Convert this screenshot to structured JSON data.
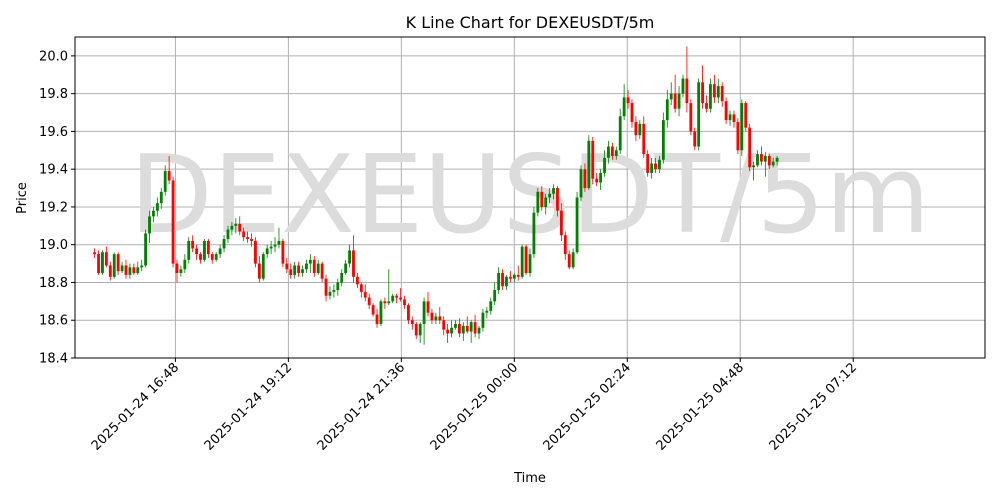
{
  "chart_data": {
    "type": "candlestick",
    "title": "K Line Chart for DEXEUSDT/5m",
    "xlabel": "Time",
    "ylabel": "Price",
    "watermark": "DEXEUSDT/5m",
    "ylim": [
      18.4,
      20.1
    ],
    "xlim": [
      "2025-01-24 14:40",
      "2025-01-25 10:00"
    ],
    "yticks": [
      18.4,
      18.6,
      18.8,
      19.0,
      19.2,
      19.4,
      19.6,
      19.8,
      20.0
    ],
    "ytick_labels": [
      "18.4",
      "18.6",
      "18.8",
      "19.0",
      "19.2",
      "19.4",
      "19.6",
      "19.8",
      "20.0"
    ],
    "xticks": [
      "2025-01-24 16:48",
      "2025-01-24 19:12",
      "2025-01-24 21:36",
      "2025-01-25 00:00",
      "2025-01-25 02:24",
      "2025-01-25 04:48",
      "2025-01-25 07:12"
    ],
    "grid": true,
    "legend": "none",
    "colors": {
      "up": "#008000",
      "down": "#ff0000",
      "grid": "#b0b0b0",
      "watermark": "#dcdcdc"
    },
    "candle_interval_minutes": 5,
    "first_candle_time": "2025-01-24 15:05",
    "candles": [
      [
        18.96,
        18.98,
        18.93,
        18.95
      ],
      [
        18.95,
        18.97,
        18.84,
        18.85
      ],
      [
        18.85,
        18.97,
        18.84,
        18.96
      ],
      [
        18.96,
        18.99,
        18.88,
        18.89
      ],
      [
        18.89,
        18.91,
        18.81,
        18.83
      ],
      [
        18.83,
        18.96,
        18.82,
        18.95
      ],
      [
        18.95,
        18.96,
        18.84,
        18.86
      ],
      [
        18.86,
        18.91,
        18.85,
        18.89
      ],
      [
        18.89,
        18.92,
        18.82,
        18.84
      ],
      [
        18.84,
        18.9,
        18.82,
        18.88
      ],
      [
        18.88,
        18.9,
        18.84,
        18.85
      ],
      [
        18.85,
        18.91,
        18.84,
        18.88
      ],
      [
        18.88,
        18.92,
        18.86,
        18.89
      ],
      [
        18.89,
        19.08,
        18.88,
        19.06
      ],
      [
        19.06,
        19.18,
        19.01,
        19.15
      ],
      [
        19.15,
        19.2,
        19.12,
        19.18
      ],
      [
        19.18,
        19.25,
        19.15,
        19.22
      ],
      [
        19.22,
        19.3,
        19.19,
        19.28
      ],
      [
        19.28,
        19.42,
        19.26,
        19.39
      ],
      [
        19.39,
        19.47,
        19.32,
        19.34
      ],
      [
        19.34,
        19.36,
        18.88,
        18.9
      ],
      [
        18.9,
        18.92,
        18.8,
        18.85
      ],
      [
        18.85,
        18.89,
        18.83,
        18.87
      ],
      [
        18.87,
        18.95,
        18.85,
        18.92
      ],
      [
        18.92,
        19.04,
        18.9,
        19.02
      ],
      [
        19.02,
        19.05,
        18.96,
        18.98
      ],
      [
        18.98,
        19.0,
        18.92,
        18.95
      ],
      [
        18.95,
        18.96,
        18.9,
        18.92
      ],
      [
        18.92,
        19.03,
        18.91,
        19.02
      ],
      [
        19.02,
        19.03,
        18.93,
        18.95
      ],
      [
        18.95,
        18.96,
        18.9,
        18.92
      ],
      [
        18.92,
        18.96,
        18.91,
        18.95
      ],
      [
        18.95,
        19.0,
        18.93,
        18.98
      ],
      [
        18.98,
        19.05,
        18.96,
        19.03
      ],
      [
        19.03,
        19.1,
        19.01,
        19.08
      ],
      [
        19.08,
        19.12,
        19.05,
        19.1
      ],
      [
        19.1,
        19.14,
        19.06,
        19.11
      ],
      [
        19.11,
        19.15,
        19.05,
        19.07
      ],
      [
        19.07,
        19.09,
        19.02,
        19.04
      ],
      [
        19.04,
        19.07,
        19.01,
        19.03
      ],
      [
        19.03,
        19.06,
        18.99,
        19.02
      ],
      [
        19.02,
        19.04,
        18.88,
        18.9
      ],
      [
        18.9,
        18.94,
        18.8,
        18.82
      ],
      [
        18.82,
        18.96,
        18.81,
        18.95
      ],
      [
        18.95,
        19.0,
        18.93,
        18.98
      ],
      [
        18.98,
        19.02,
        18.95,
        18.99
      ],
      [
        18.99,
        19.04,
        18.96,
        19.0
      ],
      [
        19.0,
        19.09,
        18.98,
        19.02
      ],
      [
        19.02,
        19.03,
        18.88,
        18.9
      ],
      [
        18.9,
        18.93,
        18.85,
        18.87
      ],
      [
        18.87,
        18.9,
        18.82,
        18.84
      ],
      [
        18.84,
        18.91,
        18.82,
        18.89
      ],
      [
        18.89,
        18.91,
        18.83,
        18.85
      ],
      [
        18.85,
        18.89,
        18.83,
        18.87
      ],
      [
        18.87,
        18.92,
        18.85,
        18.9
      ],
      [
        18.9,
        18.95,
        18.85,
        18.92
      ],
      [
        18.92,
        18.94,
        18.83,
        18.85
      ],
      [
        18.85,
        18.92,
        18.84,
        18.9
      ],
      [
        18.9,
        18.91,
        18.8,
        18.82
      ],
      [
        18.82,
        18.84,
        18.7,
        18.73
      ],
      [
        18.73,
        18.78,
        18.71,
        18.75
      ],
      [
        18.75,
        18.79,
        18.72,
        18.76
      ],
      [
        18.76,
        18.82,
        18.73,
        18.8
      ],
      [
        18.8,
        18.87,
        18.78,
        18.85
      ],
      [
        18.85,
        18.92,
        18.84,
        18.9
      ],
      [
        18.9,
        19.0,
        18.88,
        18.97
      ],
      [
        18.97,
        19.05,
        18.8,
        18.83
      ],
      [
        18.83,
        18.85,
        18.77,
        18.79
      ],
      [
        18.79,
        18.8,
        18.72,
        18.75
      ],
      [
        18.75,
        18.79,
        18.7,
        18.72
      ],
      [
        18.72,
        18.74,
        18.66,
        18.68
      ],
      [
        18.68,
        18.69,
        18.62,
        18.63
      ],
      [
        18.63,
        18.66,
        18.56,
        18.58
      ],
      [
        18.58,
        18.71,
        18.57,
        18.7
      ],
      [
        18.7,
        18.72,
        18.66,
        18.69
      ],
      [
        18.69,
        18.87,
        18.68,
        18.7
      ],
      [
        18.7,
        18.74,
        18.69,
        18.73
      ],
      [
        18.73,
        18.74,
        18.69,
        18.72
      ],
      [
        18.72,
        18.77,
        18.7,
        18.71
      ],
      [
        18.71,
        18.73,
        18.66,
        18.68
      ],
      [
        18.68,
        18.69,
        18.58,
        18.6
      ],
      [
        18.6,
        18.62,
        18.55,
        18.58
      ],
      [
        18.58,
        18.59,
        18.5,
        18.52
      ],
      [
        18.52,
        18.59,
        18.48,
        18.58
      ],
      [
        18.58,
        18.72,
        18.47,
        18.7
      ],
      [
        18.7,
        18.75,
        18.62,
        18.64
      ],
      [
        18.64,
        18.66,
        18.58,
        18.6
      ],
      [
        18.6,
        18.64,
        18.58,
        18.62
      ],
      [
        18.62,
        18.67,
        18.58,
        18.6
      ],
      [
        18.6,
        18.62,
        18.52,
        18.55
      ],
      [
        18.55,
        18.58,
        18.48,
        18.53
      ],
      [
        18.53,
        18.6,
        18.51,
        18.56
      ],
      [
        18.56,
        18.6,
        18.55,
        18.58
      ],
      [
        18.58,
        18.61,
        18.51,
        18.53
      ],
      [
        18.53,
        18.59,
        18.49,
        18.57
      ],
      [
        18.57,
        18.62,
        18.53,
        18.54
      ],
      [
        18.54,
        18.6,
        18.48,
        18.59
      ],
      [
        18.59,
        18.63,
        18.51,
        18.53
      ],
      [
        18.53,
        18.57,
        18.5,
        18.56
      ],
      [
        18.56,
        18.66,
        18.54,
        18.64
      ],
      [
        18.64,
        18.67,
        18.61,
        18.65
      ],
      [
        18.65,
        18.72,
        18.63,
        18.7
      ],
      [
        18.7,
        18.8,
        18.68,
        18.76
      ],
      [
        18.76,
        18.88,
        18.74,
        18.85
      ],
      [
        18.85,
        18.87,
        18.76,
        18.78
      ],
      [
        18.78,
        18.84,
        18.76,
        18.83
      ],
      [
        18.83,
        18.86,
        18.8,
        18.82
      ],
      [
        18.82,
        18.85,
        18.8,
        18.84
      ],
      [
        18.84,
        18.89,
        18.81,
        18.83
      ],
      [
        18.83,
        19.0,
        18.82,
        18.99
      ],
      [
        18.99,
        19.0,
        18.84,
        18.85
      ],
      [
        18.85,
        18.98,
        18.83,
        18.95
      ],
      [
        18.95,
        19.2,
        18.93,
        19.17
      ],
      [
        19.17,
        19.3,
        19.15,
        19.28
      ],
      [
        19.28,
        19.31,
        19.18,
        19.2
      ],
      [
        19.2,
        19.27,
        19.16,
        19.25
      ],
      [
        19.25,
        19.3,
        19.22,
        19.27
      ],
      [
        19.27,
        19.32,
        19.24,
        19.3
      ],
      [
        19.3,
        19.31,
        19.15,
        19.18
      ],
      [
        19.18,
        19.22,
        19.02,
        19.05
      ],
      [
        19.05,
        19.07,
        18.92,
        18.95
      ],
      [
        18.95,
        18.97,
        18.87,
        18.88
      ],
      [
        18.88,
        18.98,
        18.87,
        18.96
      ],
      [
        18.96,
        19.28,
        18.95,
        19.25
      ],
      [
        19.25,
        19.42,
        19.23,
        19.4
      ],
      [
        19.4,
        19.43,
        19.28,
        19.3
      ],
      [
        19.3,
        19.58,
        19.29,
        19.55
      ],
      [
        19.55,
        19.57,
        19.32,
        19.35
      ],
      [
        19.35,
        19.38,
        19.31,
        19.33
      ],
      [
        19.33,
        19.4,
        19.29,
        19.38
      ],
      [
        19.38,
        19.5,
        19.36,
        19.46
      ],
      [
        19.46,
        19.55,
        19.43,
        19.52
      ],
      [
        19.52,
        19.54,
        19.45,
        19.47
      ],
      [
        19.47,
        19.52,
        19.45,
        19.5
      ],
      [
        19.5,
        19.72,
        19.48,
        19.68
      ],
      [
        19.68,
        19.85,
        19.66,
        19.78
      ],
      [
        19.78,
        19.82,
        19.72,
        19.75
      ],
      [
        19.75,
        19.77,
        19.62,
        19.65
      ],
      [
        19.65,
        19.68,
        19.55,
        19.58
      ],
      [
        19.58,
        19.66,
        19.56,
        19.64
      ],
      [
        19.64,
        19.68,
        19.46,
        19.48
      ],
      [
        19.48,
        19.5,
        19.36,
        19.38
      ],
      [
        19.38,
        19.46,
        19.35,
        19.43
      ],
      [
        19.43,
        19.46,
        19.38,
        19.4
      ],
      [
        19.4,
        19.47,
        19.38,
        19.45
      ],
      [
        19.45,
        19.7,
        19.43,
        19.66
      ],
      [
        19.66,
        19.82,
        19.62,
        19.77
      ],
      [
        19.77,
        19.86,
        19.74,
        19.8
      ],
      [
        19.8,
        19.9,
        19.7,
        19.72
      ],
      [
        19.72,
        19.84,
        19.68,
        19.8
      ],
      [
        19.8,
        19.9,
        19.78,
        19.88
      ],
      [
        19.88,
        20.05,
        19.7,
        19.75
      ],
      [
        19.75,
        19.77,
        19.58,
        19.6
      ],
      [
        19.6,
        19.62,
        19.5,
        19.52
      ],
      [
        19.52,
        19.88,
        19.5,
        19.86
      ],
      [
        19.86,
        19.95,
        19.72,
        19.75
      ],
      [
        19.75,
        19.79,
        19.7,
        19.72
      ],
      [
        19.72,
        19.88,
        19.7,
        19.85
      ],
      [
        19.85,
        19.9,
        19.75,
        19.78
      ],
      [
        19.78,
        19.88,
        19.75,
        19.84
      ],
      [
        19.84,
        19.86,
        19.73,
        19.76
      ],
      [
        19.76,
        19.78,
        19.64,
        19.66
      ],
      [
        19.66,
        19.71,
        19.63,
        19.69
      ],
      [
        19.69,
        19.71,
        19.62,
        19.65
      ],
      [
        19.65,
        19.67,
        19.48,
        19.5
      ],
      [
        19.5,
        19.77,
        19.47,
        19.75
      ],
      [
        19.75,
        19.76,
        19.6,
        19.62
      ],
      [
        19.62,
        19.64,
        19.39,
        19.41
      ],
      [
        19.41,
        19.44,
        19.34,
        19.42
      ],
      [
        19.42,
        19.5,
        19.41,
        19.48
      ],
      [
        19.48,
        19.52,
        19.42,
        19.44
      ],
      [
        19.44,
        19.49,
        19.36,
        19.47
      ],
      [
        19.47,
        19.48,
        19.4,
        19.42
      ],
      [
        19.42,
        19.46,
        19.41,
        19.44
      ],
      [
        19.44,
        19.47,
        19.42,
        19.46
      ]
    ]
  }
}
